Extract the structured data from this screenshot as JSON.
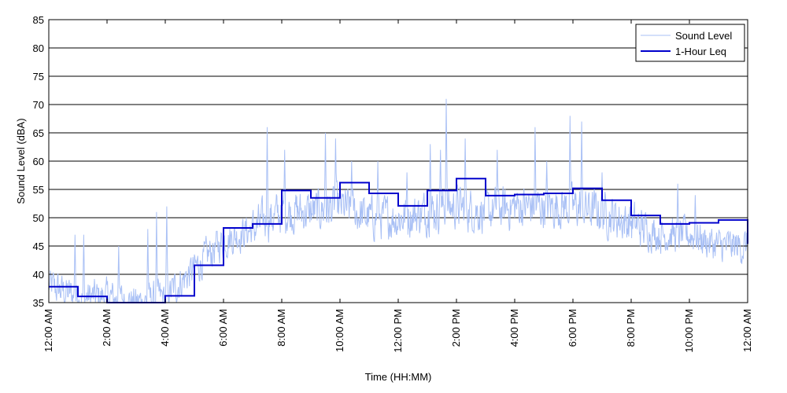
{
  "chart_data": {
    "type": "line",
    "xlabel": "Time (HH:MM)",
    "ylabel": "Sound Level (dBA)",
    "ylim": [
      35,
      85
    ],
    "yticks": [
      35,
      40,
      45,
      50,
      55,
      60,
      65,
      70,
      75,
      80,
      85
    ],
    "xlim_hours": [
      0,
      24
    ],
    "xticks": [
      {
        "hour": 0,
        "label": "12:00 AM"
      },
      {
        "hour": 2,
        "label": "2:00 AM"
      },
      {
        "hour": 4,
        "label": "4:00 AM"
      },
      {
        "hour": 6,
        "label": "6:00 AM"
      },
      {
        "hour": 8,
        "label": "8:00 AM"
      },
      {
        "hour": 10,
        "label": "10:00 AM"
      },
      {
        "hour": 12,
        "label": "12:00 PM"
      },
      {
        "hour": 14,
        "label": "2:00 PM"
      },
      {
        "hour": 16,
        "label": "4:00 PM"
      },
      {
        "hour": 18,
        "label": "6:00 PM"
      },
      {
        "hour": 20,
        "label": "8:00 PM"
      },
      {
        "hour": 22,
        "label": "10:00 PM"
      },
      {
        "hour": 24,
        "label": "12:00 AM"
      }
    ],
    "grid": "horizontal",
    "legend_position": "top-right",
    "series": [
      {
        "name": "Sound Level",
        "color": "#a9c0f5",
        "style": "thin-line",
        "hourly_trend": [
          38,
          36,
          36,
          35,
          36,
          41,
          46,
          48,
          51,
          51,
          52,
          50,
          50,
          51,
          52,
          51,
          52,
          52,
          52,
          51,
          49,
          47,
          47,
          45
        ],
        "spikes": [
          {
            "hour": 0.9,
            "value": 47
          },
          {
            "hour": 1.2,
            "value": 47
          },
          {
            "hour": 2.4,
            "value": 45
          },
          {
            "hour": 3.4,
            "value": 48
          },
          {
            "hour": 3.7,
            "value": 51
          },
          {
            "hour": 4.05,
            "value": 52
          },
          {
            "hour": 7.5,
            "value": 66
          },
          {
            "hour": 8.1,
            "value": 62
          },
          {
            "hour": 9.5,
            "value": 65
          },
          {
            "hour": 9.85,
            "value": 64
          },
          {
            "hour": 10.4,
            "value": 60
          },
          {
            "hour": 11.3,
            "value": 60
          },
          {
            "hour": 12.3,
            "value": 58
          },
          {
            "hour": 13.1,
            "value": 63
          },
          {
            "hour": 13.45,
            "value": 62
          },
          {
            "hour": 13.65,
            "value": 71
          },
          {
            "hour": 14.3,
            "value": 64
          },
          {
            "hour": 15.4,
            "value": 62
          },
          {
            "hour": 16.7,
            "value": 66
          },
          {
            "hour": 17.1,
            "value": 60
          },
          {
            "hour": 17.9,
            "value": 68
          },
          {
            "hour": 18.3,
            "value": 67
          },
          {
            "hour": 19.0,
            "value": 58
          },
          {
            "hour": 21.6,
            "value": 56
          },
          {
            "hour": 22.2,
            "value": 54
          }
        ]
      },
      {
        "name": "1-Hour Leq",
        "color": "#0000cc",
        "style": "step",
        "values": [
          37.8,
          36.1,
          34.5,
          34.5,
          36.2,
          41.6,
          48.2,
          48.9,
          54.8,
          53.5,
          56.2,
          54.3,
          52.1,
          54.8,
          56.9,
          53.9,
          54.1,
          54.3,
          55.2,
          53.1,
          50.4,
          48.9,
          49.1,
          49.6,
          45.4
        ]
      }
    ]
  }
}
